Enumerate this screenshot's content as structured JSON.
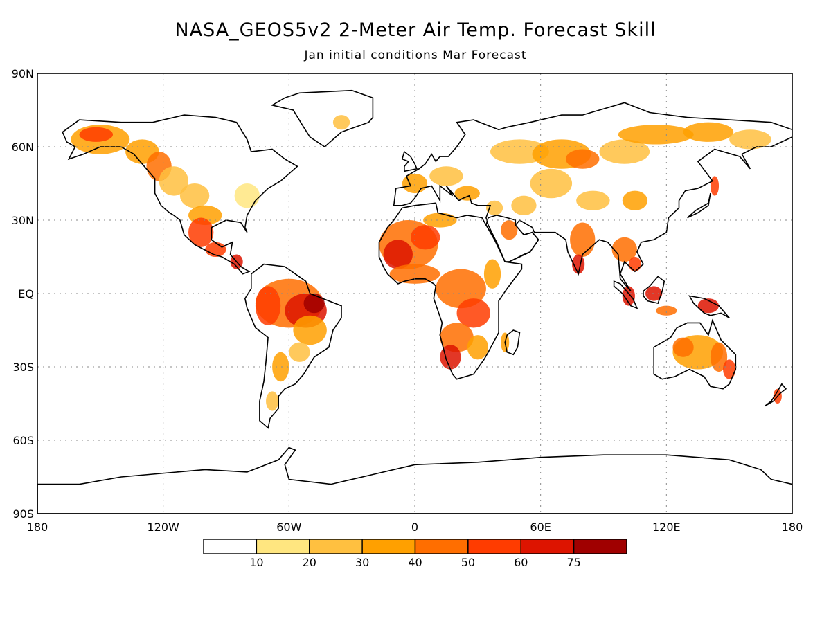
{
  "title": "NASA_GEOS5v2 2-Meter Air Temp. Forecast Skill",
  "subtitle": "Jan initial conditions  Mar Forecast",
  "lat_labels": [
    "90N",
    "60N",
    "30N",
    "EQ",
    "30S",
    "60S",
    "90S"
  ],
  "lon_labels": [
    "180",
    "120W",
    "60W",
    "0",
    "60E",
    "120E",
    "180"
  ],
  "colorbar": {
    "colors": [
      "#ffffff",
      "#ffe680",
      "#ffc040",
      "#ffa000",
      "#ff6e00",
      "#ff3c00",
      "#dd1400",
      "#a00000"
    ],
    "tick_labels": [
      "10",
      "20",
      "30",
      "40",
      "50",
      "60",
      "75"
    ]
  },
  "land_color": "#ffffff",
  "coast_color": "#000000"
}
